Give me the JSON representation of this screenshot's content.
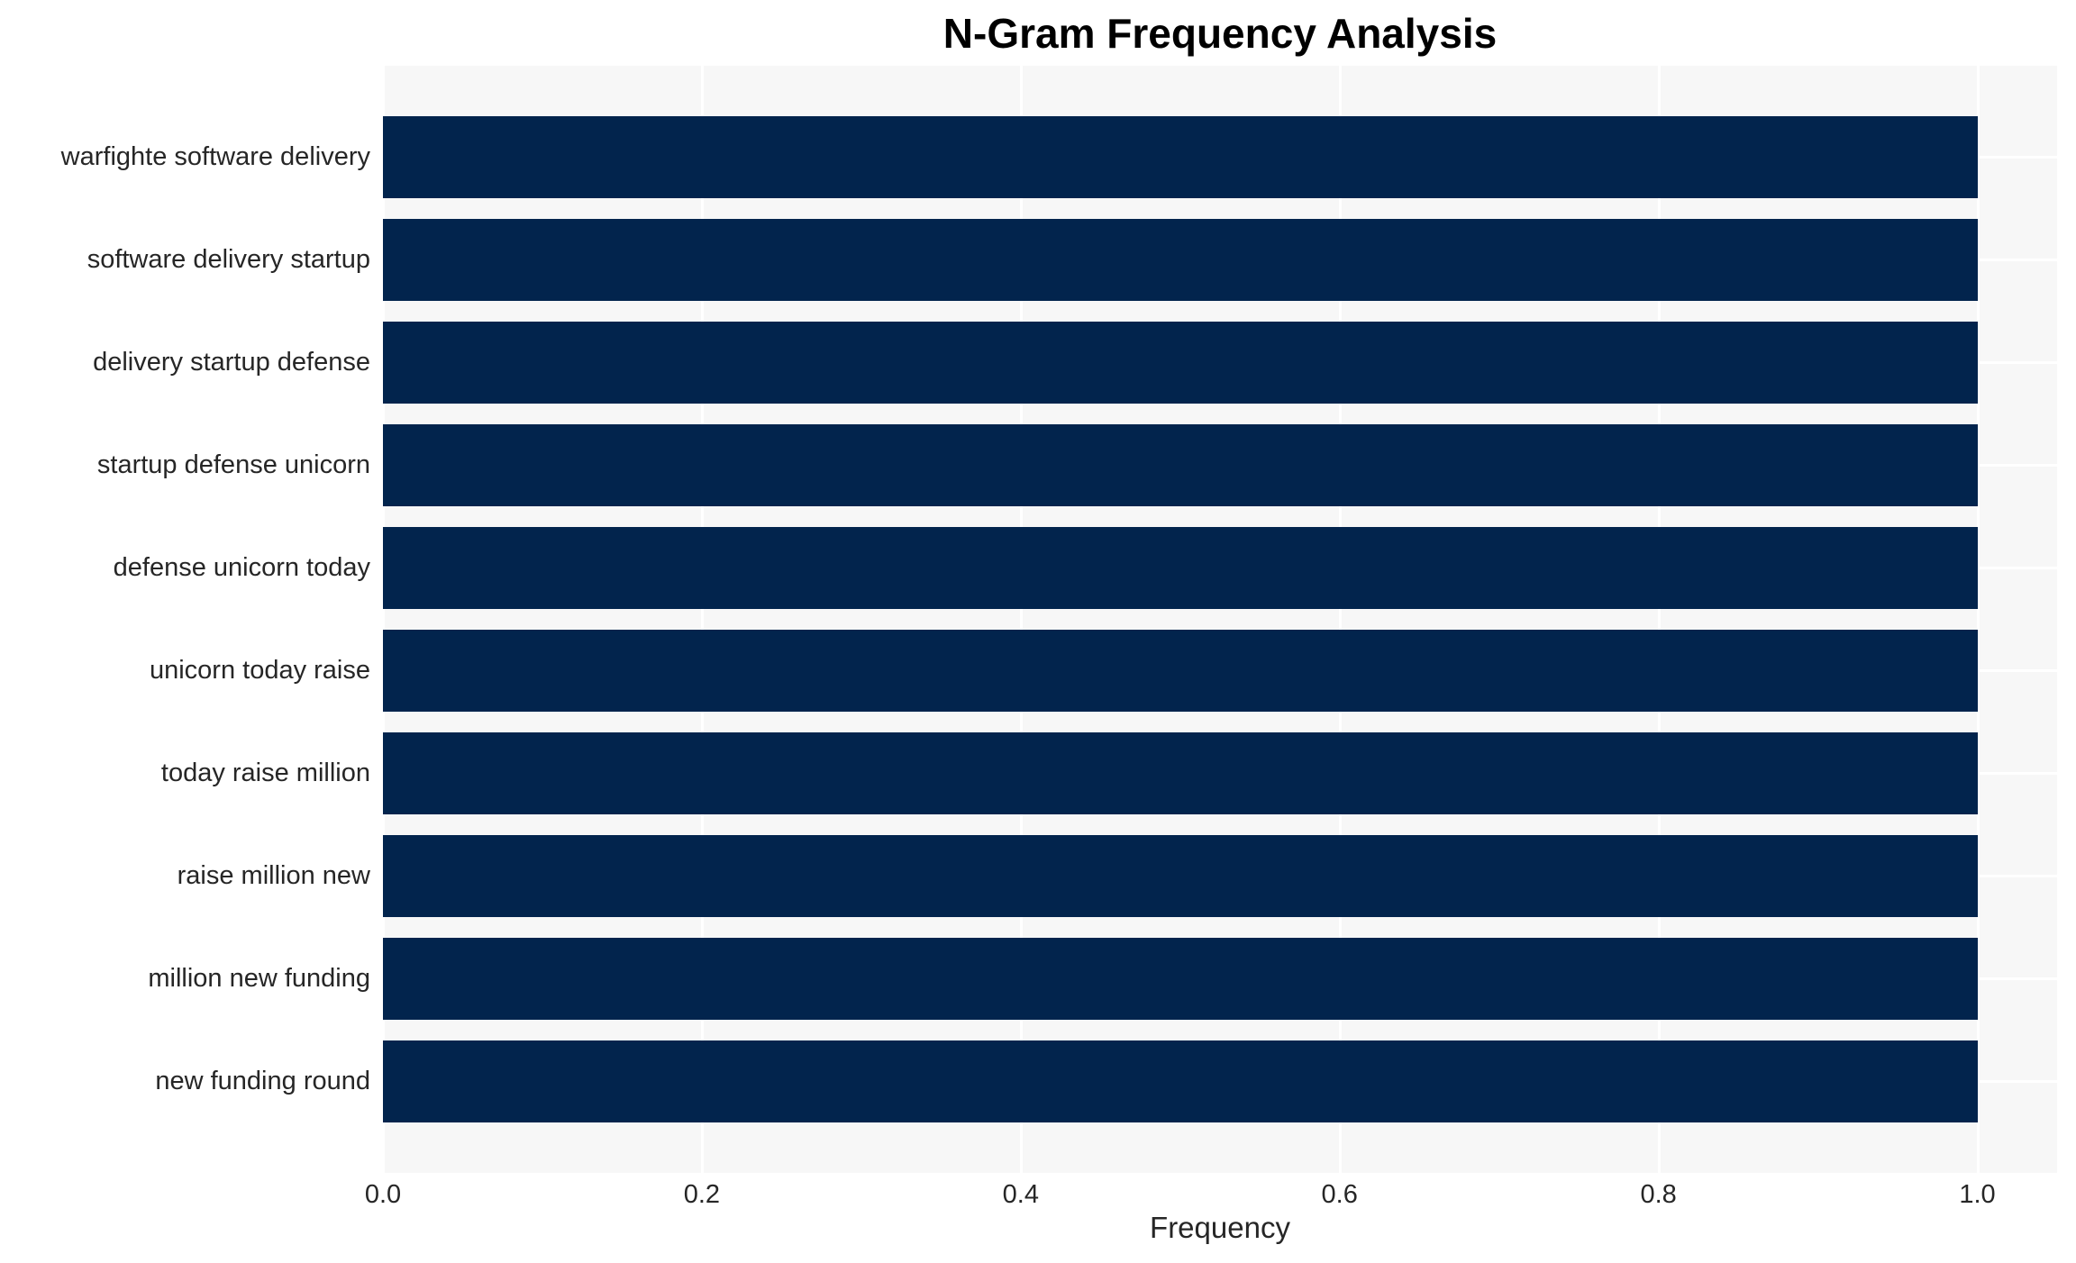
{
  "chart_data": {
    "type": "bar",
    "orientation": "horizontal",
    "title": "N-Gram Frequency Analysis",
    "xlabel": "Frequency",
    "ylabel": "",
    "categories": [
      "warfighte software delivery",
      "software delivery startup",
      "delivery startup defense",
      "startup defense unicorn",
      "defense unicorn today",
      "unicorn today raise",
      "today raise million",
      "raise million new",
      "million new funding",
      "new funding round"
    ],
    "values": [
      1.0,
      1.0,
      1.0,
      1.0,
      1.0,
      1.0,
      1.0,
      1.0,
      1.0,
      1.0
    ],
    "x_ticks": [
      "0.0",
      "0.2",
      "0.4",
      "0.6",
      "0.8",
      "1.0"
    ],
    "xlim": [
      0,
      1.05
    ],
    "grid": "white gridlines on light gray plot background",
    "legend": false,
    "colors": {
      "bar": "#02244d",
      "plot_background": "#f7f7f7",
      "gridline": "#ffffff",
      "tick_text": "#262626",
      "title_text": "#000000"
    }
  }
}
